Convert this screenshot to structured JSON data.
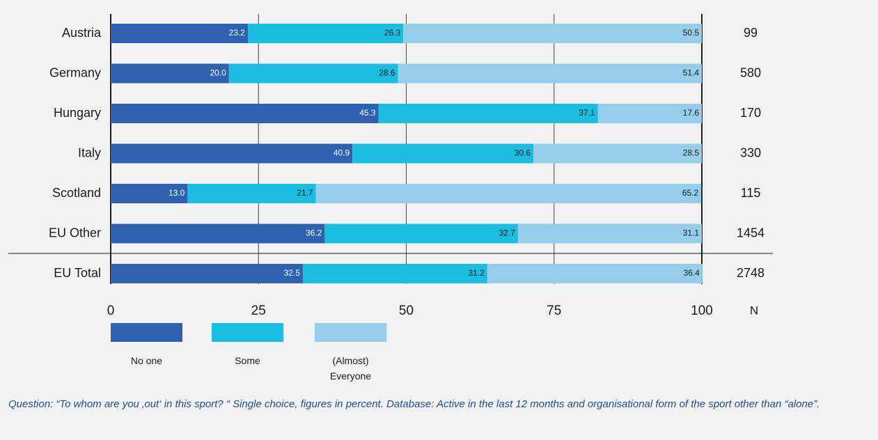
{
  "chart_data": {
    "type": "stacked-bar-horizontal",
    "categories": [
      "Austria",
      "Germany",
      "Hungary",
      "Italy",
      "Scotland",
      "EU Other",
      "EU Total"
    ],
    "series": [
      {
        "name": "No one",
        "color": "#2e62b0",
        "values": [
          23.2,
          20.0,
          45.3,
          40.9,
          13.0,
          36.2,
          32.5
        ],
        "value_labels": [
          "23.2",
          "20.0",
          "45.3",
          "40.9",
          "13.0",
          "36.2",
          "32.5"
        ]
      },
      {
        "name": "Some",
        "color": "#1bbde0",
        "values": [
          26.3,
          28.6,
          37.1,
          30.6,
          21.7,
          32.7,
          31.2
        ],
        "value_labels": [
          "26.3",
          "28.6",
          "37.1",
          "30.6",
          "21.7",
          "32.7",
          "31.2"
        ]
      },
      {
        "name": "(Almost) Everyone",
        "color": "#96cdea",
        "values": [
          50.5,
          51.4,
          17.6,
          28.5,
          65.2,
          31.1,
          36.4
        ],
        "value_labels": [
          "50.5",
          "51.4",
          "17.6",
          "28.5",
          "65.2",
          "31.1",
          "36.4"
        ]
      }
    ],
    "n_label": "N",
    "n": [
      99,
      580,
      170,
      330,
      115,
      1454,
      2748
    ],
    "xlim": [
      0,
      100
    ],
    "xticks": [
      0,
      25,
      50,
      75,
      100
    ],
    "grid": true,
    "note": "Question: “To whom are you ‚out‘ in this sport? “ Single choice, figures in percent. Database: Active in the last 12 months  and organisational form of the sport other than “alone”."
  }
}
